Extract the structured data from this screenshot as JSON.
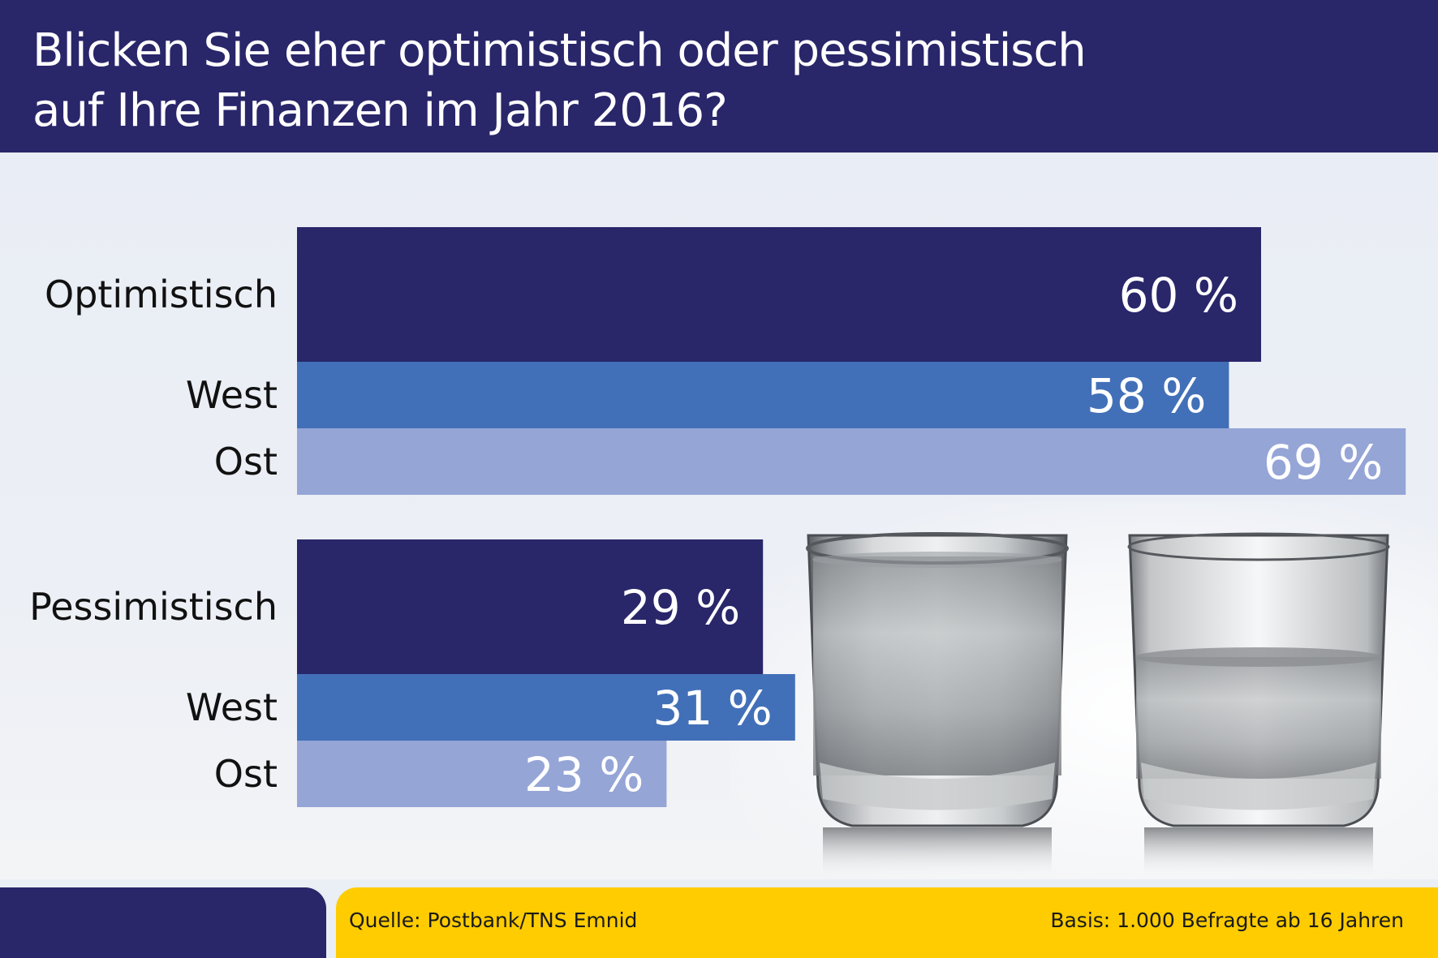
{
  "header": {
    "title_line1": "Blicken Sie eher optimistisch oder pessimistisch",
    "title_line2": "auf Ihre Finanzen im Jahr 2016?"
  },
  "footer": {
    "source": "Quelle: Postbank/TNS Emnid",
    "basis": "Basis: 1.000 Befragte ab 16 Jahren"
  },
  "colors": {
    "header_bg": "#29266a",
    "total": "#29266a",
    "west": "#4270b8",
    "ost": "#95a5d6",
    "footer_yellow": "#fecc00"
  },
  "images": [
    "water-glass-full",
    "water-glass-half"
  ],
  "chart_data": {
    "type": "bar",
    "orientation": "horizontal",
    "title": "Blicken Sie eher optimistisch oder pessimistisch auf Ihre Finanzen im Jahr 2016?",
    "unit": "%",
    "xlim": [
      0,
      100
    ],
    "grid": false,
    "legend": "none",
    "groups": [
      {
        "name": "Optimistisch",
        "bars": [
          {
            "label": "",
            "key": "total",
            "value": 60,
            "value_label": "60 %"
          },
          {
            "label": "West",
            "key": "west",
            "value": 58,
            "value_label": "58 %"
          },
          {
            "label": "Ost",
            "key": "ost",
            "value": 69,
            "value_label": "69 %"
          }
        ]
      },
      {
        "name": "Pessimistisch",
        "bars": [
          {
            "label": "",
            "key": "total",
            "value": 29,
            "value_label": "29 %"
          },
          {
            "label": "West",
            "key": "west",
            "value": 31,
            "value_label": "31 %"
          },
          {
            "label": "Ost",
            "key": "ost",
            "value": 23,
            "value_label": "23 %"
          }
        ]
      }
    ]
  }
}
